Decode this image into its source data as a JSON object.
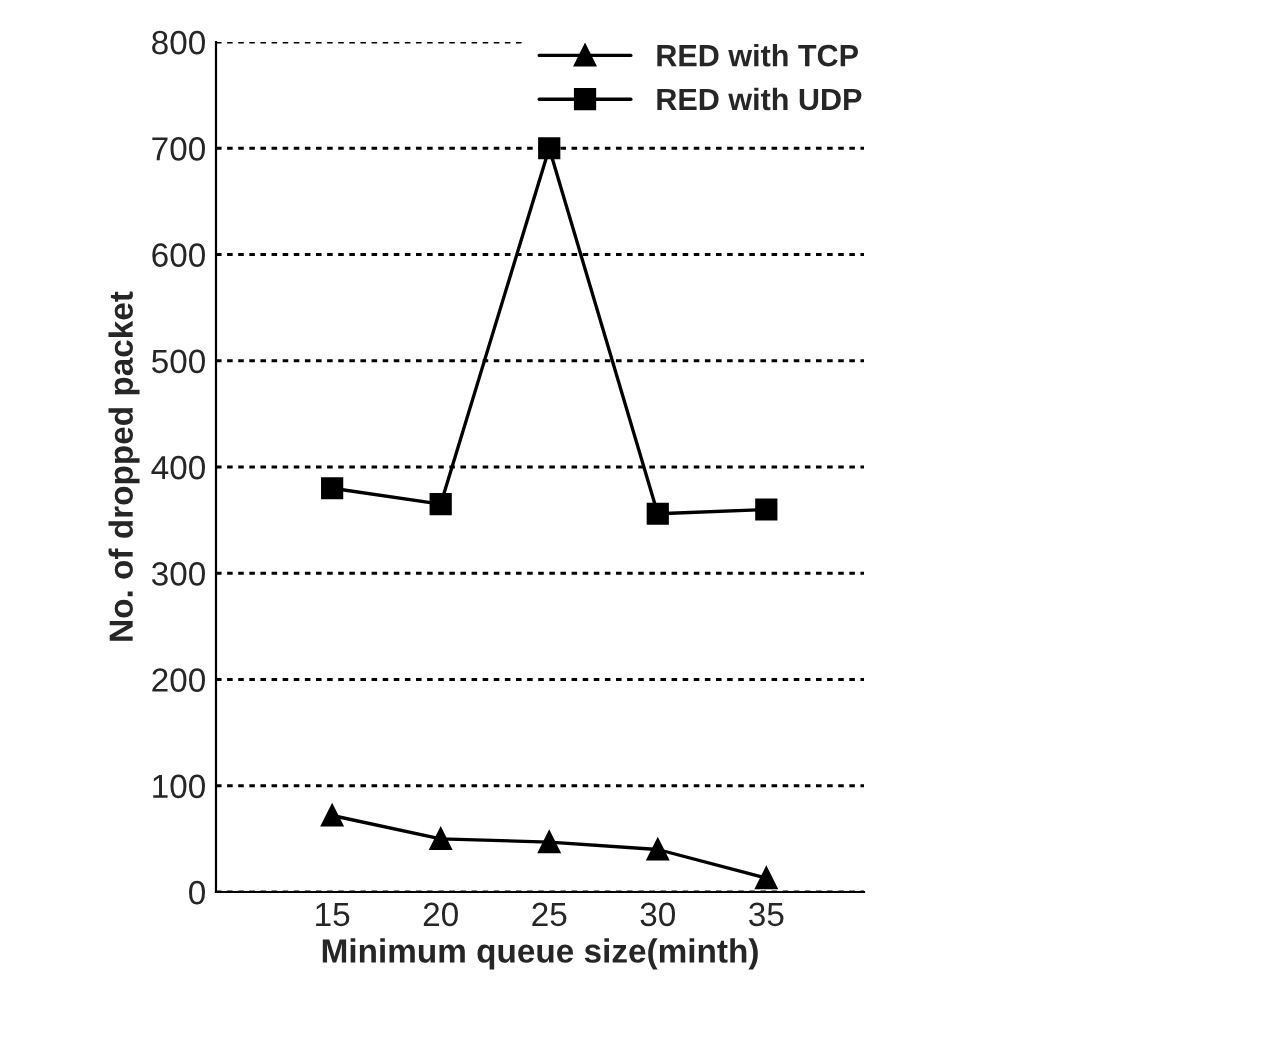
{
  "chart_data": {
    "type": "line",
    "xlabel": "Minimum queue size(minth)",
    "ylabel": "No. of dropped packet",
    "categories": [
      "15",
      "20",
      "25",
      "30",
      "35"
    ],
    "series": [
      {
        "name": "RED with TCP",
        "color": "#000000",
        "marker": "triangle",
        "values": [
          72,
          50,
          47,
          40,
          13
        ]
      },
      {
        "name": "RED with UDP",
        "color": "#000000",
        "marker": "square",
        "values": [
          380,
          365,
          700,
          356,
          360
        ]
      }
    ],
    "ylim": [
      0,
      800
    ],
    "yticks": [
      0,
      100,
      200,
      300,
      400,
      500,
      600,
      700,
      800
    ],
    "grid": "y",
    "legend": "top right",
    "line_style": "solid"
  }
}
